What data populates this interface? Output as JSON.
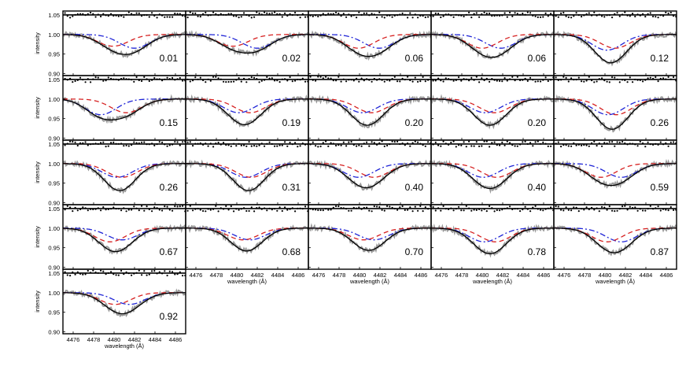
{
  "chart_data": {
    "type": "line",
    "layout": "grid of small multiples, 4 rows x 5 columns plus 1 panel in a fifth row; shared axes",
    "xlabel": "wavelength (Å)",
    "ylabel": "intensity",
    "xlim": [
      4475.0,
      4487.0
    ],
    "ylim": [
      0.895,
      1.06
    ],
    "xticks": [
      "4476",
      "4478",
      "4480",
      "4482",
      "4484",
      "4486"
    ],
    "yticks": [
      "0.90",
      "0.95",
      "1.00",
      "1.05"
    ],
    "components": {
      "wavelength_grid": [
        4475.0,
        4475.5,
        4476.0,
        4476.5,
        4477.0,
        4477.5,
        4478.0,
        4478.5,
        4479.0,
        4479.5,
        4480.0,
        4480.5,
        4481.0,
        4481.5,
        4482.0,
        4482.5,
        4483.0,
        4483.5,
        4484.0,
        4484.5,
        4485.0,
        4485.5,
        4486.0,
        4486.5,
        4487.0
      ],
      "line_width_A": 1.5,
      "residual_offset": 1.05
    },
    "legend": [],
    "styles": {
      "observed": {
        "color": "#9a9a9a",
        "dash": "solid"
      },
      "fit_total": {
        "color": "#000000",
        "dash": "solid"
      },
      "component_a": {
        "color": "#d62020",
        "dash": "dashed"
      },
      "component_b": {
        "color": "#1f24d6",
        "dash": "dash-dot"
      },
      "residuals": {
        "color": "#000000",
        "marker": "dot"
      }
    },
    "panels": [
      {
        "phase": "0.01",
        "a_center": 4479.9,
        "a_depth": 0.03,
        "b_center": 4482.0,
        "b_depth": 0.035
      },
      {
        "phase": "0.02",
        "a_center": 4479.6,
        "a_depth": 0.03,
        "b_center": 4482.0,
        "b_depth": 0.035
      },
      {
        "phase": "0.06",
        "a_center": 4479.9,
        "a_depth": 0.035,
        "b_center": 4481.9,
        "b_depth": 0.035
      },
      {
        "phase": "0.06",
        "a_center": 4480.0,
        "a_depth": 0.035,
        "b_center": 4481.8,
        "b_depth": 0.035
      },
      {
        "phase": "0.12",
        "a_center": 4481.0,
        "a_depth": 0.035,
        "b_center": 4480.2,
        "b_depth": 0.04
      },
      {
        "phase": "0.15",
        "a_center": 4481.2,
        "a_depth": 0.035,
        "b_center": 4478.7,
        "b_depth": 0.04
      },
      {
        "phase": "0.19",
        "a_center": 4481.3,
        "a_depth": 0.035,
        "b_center": 4480.2,
        "b_depth": 0.035
      },
      {
        "phase": "0.20",
        "a_center": 4481.2,
        "a_depth": 0.035,
        "b_center": 4480.3,
        "b_depth": 0.035
      },
      {
        "phase": "0.20",
        "a_center": 4481.2,
        "a_depth": 0.035,
        "b_center": 4480.3,
        "b_depth": 0.035
      },
      {
        "phase": "0.26",
        "a_center": 4481.1,
        "a_depth": 0.04,
        "b_center": 4480.3,
        "b_depth": 0.04
      },
      {
        "phase": "0.26",
        "a_center": 4480.8,
        "a_depth": 0.035,
        "b_center": 4480.3,
        "b_depth": 0.035
      },
      {
        "phase": "0.31",
        "a_center": 4481.4,
        "a_depth": 0.035,
        "b_center": 4480.9,
        "b_depth": 0.035
      },
      {
        "phase": "0.40",
        "a_center": 4481.4,
        "a_depth": 0.035,
        "b_center": 4479.9,
        "b_depth": 0.035
      },
      {
        "phase": "0.40",
        "a_center": 4481.4,
        "a_depth": 0.035,
        "b_center": 4480.1,
        "b_depth": 0.035
      },
      {
        "phase": "0.59",
        "a_center": 4479.6,
        "a_depth": 0.035,
        "b_center": 4481.6,
        "b_depth": 0.035
      },
      {
        "phase": "0.67",
        "a_center": 4479.6,
        "a_depth": 0.035,
        "b_center": 4480.8,
        "b_depth": 0.03
      },
      {
        "phase": "0.68",
        "a_center": 4480.6,
        "a_depth": 0.03,
        "b_center": 4481.3,
        "b_depth": 0.03
      },
      {
        "phase": "0.70",
        "a_center": 4480.4,
        "a_depth": 0.03,
        "b_center": 4481.4,
        "b_depth": 0.03
      },
      {
        "phase": "0.78",
        "a_center": 4481.3,
        "a_depth": 0.035,
        "b_center": 4480.2,
        "b_depth": 0.035
      },
      {
        "phase": "0.87",
        "a_center": 4480.2,
        "a_depth": 0.035,
        "b_center": 4481.6,
        "b_depth": 0.035
      },
      {
        "phase": "0.92",
        "a_center": 4480.1,
        "a_depth": 0.03,
        "b_center": 4481.5,
        "b_depth": 0.03
      }
    ]
  }
}
